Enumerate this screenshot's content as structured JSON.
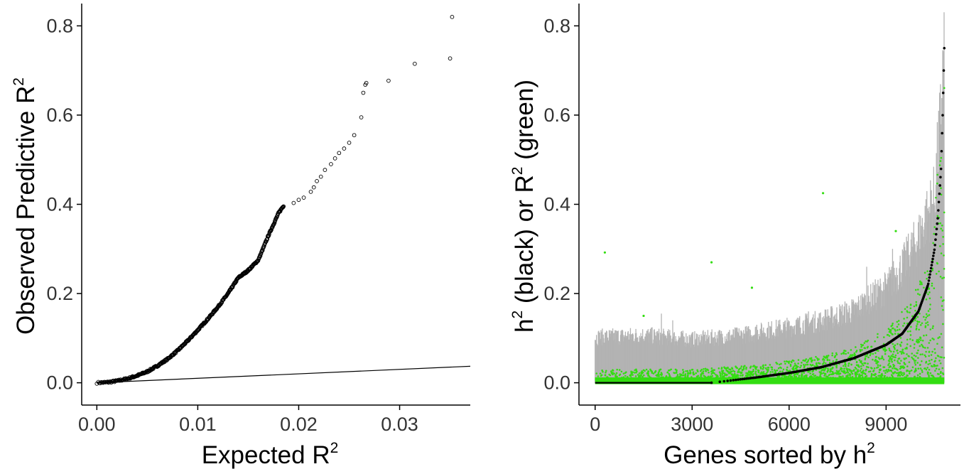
{
  "colors": {
    "points_left": "#000000",
    "refline": "#000000",
    "h2_points": "#000000",
    "r2_points": "#33dd11",
    "r2_range": "#b3b3b3",
    "axis": "#000000"
  },
  "chart_data": [
    {
      "type": "scatter",
      "xlabel": {
        "text": "Expected R",
        "sup": "2"
      },
      "ylabel": {
        "text": "Observed Predictive R",
        "sup": "2"
      },
      "xlim": [
        -0.0015,
        0.037
      ],
      "ylim": [
        -0.05,
        0.85
      ],
      "xticks": [
        0.0,
        0.01,
        0.02,
        0.03
      ],
      "xtick_labels": [
        "0.00",
        "0.01",
        "0.02",
        "0.03"
      ],
      "yticks": [
        0.0,
        0.2,
        0.4,
        0.6,
        0.8
      ],
      "ytick_labels": [
        "0.0",
        "0.2",
        "0.4",
        "0.6",
        "0.8"
      ],
      "grid": false,
      "marker": "open-circle",
      "reference_line": {
        "x": [
          0.0,
          0.037
        ],
        "y": [
          0.0,
          0.037
        ]
      },
      "curve_points": [
        [
          0.0,
          0.0
        ],
        [
          0.001,
          0.001
        ],
        [
          0.002,
          0.004
        ],
        [
          0.003,
          0.009
        ],
        [
          0.004,
          0.016
        ],
        [
          0.005,
          0.025
        ],
        [
          0.006,
          0.038
        ],
        [
          0.007,
          0.053
        ],
        [
          0.008,
          0.072
        ],
        [
          0.009,
          0.094
        ],
        [
          0.01,
          0.118
        ],
        [
          0.011,
          0.143
        ],
        [
          0.012,
          0.17
        ],
        [
          0.013,
          0.2
        ],
        [
          0.014,
          0.235
        ],
        [
          0.015,
          0.252
        ],
        [
          0.016,
          0.275
        ],
        [
          0.017,
          0.33
        ],
        [
          0.018,
          0.38
        ],
        [
          0.0185,
          0.397
        ]
      ],
      "sparse_points": [
        [
          0.0195,
          0.403
        ],
        [
          0.02,
          0.41
        ],
        [
          0.0205,
          0.415
        ],
        [
          0.0212,
          0.428
        ],
        [
          0.0215,
          0.438
        ],
        [
          0.0218,
          0.452
        ],
        [
          0.0222,
          0.462
        ],
        [
          0.0226,
          0.477
        ],
        [
          0.0232,
          0.49
        ],
        [
          0.0236,
          0.503
        ],
        [
          0.024,
          0.515
        ],
        [
          0.0245,
          0.525
        ],
        [
          0.025,
          0.538
        ],
        [
          0.0255,
          0.555
        ],
        [
          0.0262,
          0.595
        ],
        [
          0.0264,
          0.65
        ],
        [
          0.0266,
          0.668
        ],
        [
          0.0267,
          0.672
        ],
        [
          0.0289,
          0.677
        ],
        [
          0.0315,
          0.715
        ],
        [
          0.035,
          0.727
        ],
        [
          0.0352,
          0.82
        ]
      ]
    },
    {
      "type": "scatter",
      "xlabel": {
        "text": "Genes sorted by h",
        "sup": "2"
      },
      "ylabel": {
        "parts": [
          "h",
          "2",
          " (black) or  R",
          "2",
          " (green)"
        ]
      },
      "xlim": [
        -500,
        11300
      ],
      "ylim": [
        -0.05,
        0.85
      ],
      "xticks": [
        0,
        3000,
        6000,
        9000
      ],
      "xtick_labels": [
        "0",
        "3000",
        "6000",
        "9000"
      ],
      "yticks": [
        0.0,
        0.2,
        0.4,
        0.6,
        0.8
      ],
      "ytick_labels": [
        "0.0",
        "0.2",
        "0.4",
        "0.6",
        "0.8"
      ],
      "grid": false,
      "n_genes": 10800,
      "series": [
        {
          "values": "sorted h2 per gene (black)"
        },
        {
          "values": "observed R2 per gene (green)"
        }
      ],
      "h2_curve": [
        [
          0,
          0.0
        ],
        [
          3600,
          0.0
        ],
        [
          5000,
          0.012
        ],
        [
          6000,
          0.022
        ],
        [
          7000,
          0.035
        ],
        [
          8000,
          0.055
        ],
        [
          9000,
          0.085
        ],
        [
          9500,
          0.11
        ],
        [
          10000,
          0.16
        ],
        [
          10300,
          0.22
        ],
        [
          10500,
          0.3
        ],
        [
          10600,
          0.37
        ],
        [
          10700,
          0.48
        ],
        [
          10750,
          0.6
        ],
        [
          10800,
          0.75
        ]
      ],
      "r2_envelope_upper": [
        [
          0,
          0.11
        ],
        [
          1500,
          0.115
        ],
        [
          3000,
          0.105
        ],
        [
          4500,
          0.115
        ],
        [
          6000,
          0.135
        ],
        [
          7000,
          0.15
        ],
        [
          8000,
          0.175
        ],
        [
          9000,
          0.23
        ],
        [
          9500,
          0.28
        ],
        [
          10000,
          0.35
        ],
        [
          10500,
          0.45
        ],
        [
          10700,
          0.65
        ],
        [
          10800,
          0.82
        ]
      ],
      "r2_green_upper": [
        [
          0,
          0.03
        ],
        [
          3000,
          0.03
        ],
        [
          5000,
          0.04
        ],
        [
          7000,
          0.06
        ],
        [
          8000,
          0.08
        ],
        [
          9000,
          0.12
        ],
        [
          9500,
          0.16
        ],
        [
          10000,
          0.22
        ],
        [
          10400,
          0.28
        ],
        [
          10700,
          0.6
        ],
        [
          10800,
          0.67
        ]
      ],
      "r2_outliers": [
        [
          300,
          0.292
        ],
        [
          3600,
          0.27
        ],
        [
          4850,
          0.213
        ],
        [
          7050,
          0.425
        ],
        [
          9300,
          0.34
        ],
        [
          1500,
          0.15
        ]
      ]
    }
  ]
}
